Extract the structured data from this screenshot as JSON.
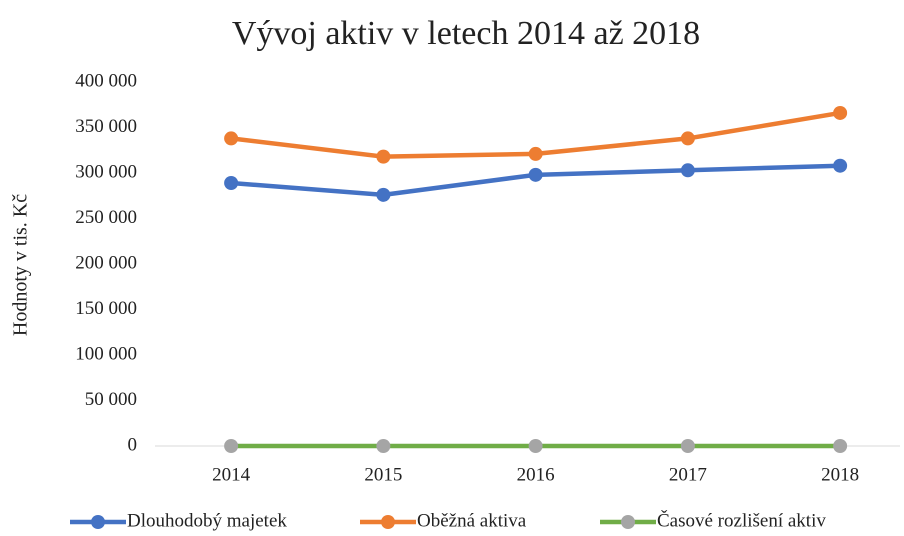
{
  "chart_data": {
    "type": "line",
    "title": "Vývoj aktiv v letech 2014 až 2018",
    "ylabel": "Hodnoty v tis. Kč",
    "categories": [
      "2014",
      "2015",
      "2016",
      "2017",
      "2018"
    ],
    "series": [
      {
        "name": "Dlouhodobý majetek",
        "color": "#4472c4",
        "marker_color": "#4472c4",
        "values": [
          289000,
          276000,
          298000,
          303000,
          308000
        ]
      },
      {
        "name": "Oběžná aktiva",
        "color": "#ed7d31",
        "marker_color": "#ed7d31",
        "values": [
          338000,
          318000,
          321000,
          338000,
          366000
        ]
      },
      {
        "name": "Časové rozlišení aktiv",
        "color": "#70ad47",
        "marker_color": "#a5a5a5",
        "values": [
          0,
          0,
          0,
          0,
          0
        ]
      }
    ],
    "ylim": [
      0,
      400000
    ],
    "yticks": [
      0,
      {
        "value": 50000,
        "label": "50 000"
      },
      {
        "value": 100000,
        "label": "100 000"
      },
      {
        "value": 150000,
        "label": "150 000"
      },
      {
        "value": 200000,
        "label": "200 000"
      },
      {
        "value": 250000,
        "label": "250 000"
      },
      {
        "value": 300000,
        "label": "300 000"
      },
      {
        "value": 350000,
        "label": "350 000"
      },
      {
        "value": 400000,
        "label": "400 000"
      }
    ],
    "grid": false,
    "legend": "bottom"
  }
}
